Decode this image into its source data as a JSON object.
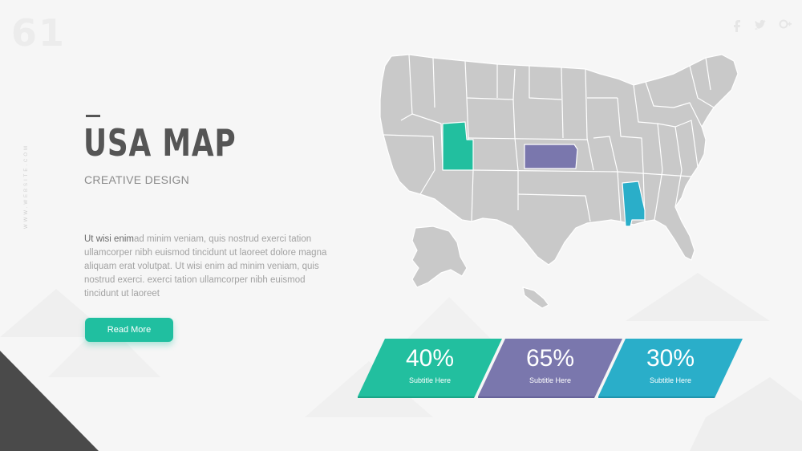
{
  "slide": {
    "number": "61",
    "side_text": "WWW.WEBSITE.COM"
  },
  "header": {
    "title": "USA MAP",
    "subtitle": "CREATIVE DESIGN"
  },
  "body": {
    "lead": "Ut wisi enim",
    "text": "ad minim veniam, quis nostrud exerci tation ullamcorper nibh euismod tincidunt ut laoreet dolore magna aliquam erat volutpat. Ut wisi enim ad minim veniam, quis nostrud exerci. exerci tation ullamcorper nibh euismod tincidunt ut laoreet"
  },
  "button": {
    "label": "Read More"
  },
  "map": {
    "highlighted_states": [
      {
        "state": "Utah",
        "color": "#22bf9f"
      },
      {
        "state": "Kansas",
        "color": "#7a77ad"
      },
      {
        "state": "Alabama",
        "color": "#2aaec9"
      }
    ],
    "base_color": "#c9c9c9"
  },
  "stats": [
    {
      "value": "40%",
      "label": "Subtitle Here",
      "color": "#22bf9f"
    },
    {
      "value": "65%",
      "label": "Subtitle Here",
      "color": "#7a77ad"
    },
    {
      "value": "30%",
      "label": "Subtitle Here",
      "color": "#2aaec9"
    }
  ],
  "social": [
    "facebook-icon",
    "twitter-icon",
    "google-plus-icon"
  ],
  "colors": {
    "accent": "#20bfa0",
    "title": "#555555",
    "dark_corner": "#4a4a4a"
  }
}
